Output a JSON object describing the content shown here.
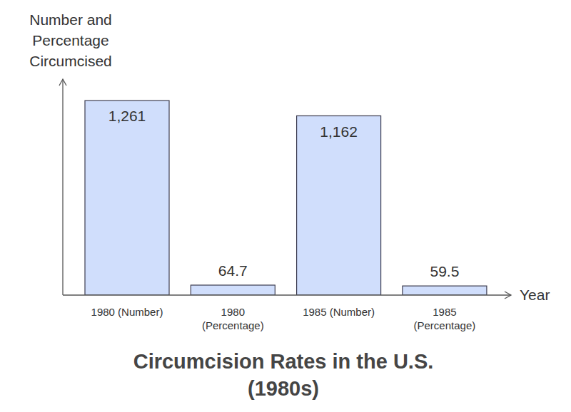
{
  "chart_data": {
    "type": "bar",
    "title": "Circumcision Rates in the U.S. (1980s)",
    "x_label": "Year",
    "y_label": "Number and Percentage Circumcised",
    "categories": [
      "1980 (Number)",
      "1980 (Percentage)",
      "1985 (Number)",
      "1985 (Percentage)"
    ],
    "values": [
      1261,
      64.7,
      1162,
      59.5
    ],
    "value_labels": [
      "1,261",
      "64.7",
      "1,162",
      "59.5"
    ],
    "data_labels": true,
    "color": "#d0defc",
    "ylim": [
      0,
      1400
    ],
    "yticks": [],
    "grid": false,
    "tick_labels": false
  }
}
